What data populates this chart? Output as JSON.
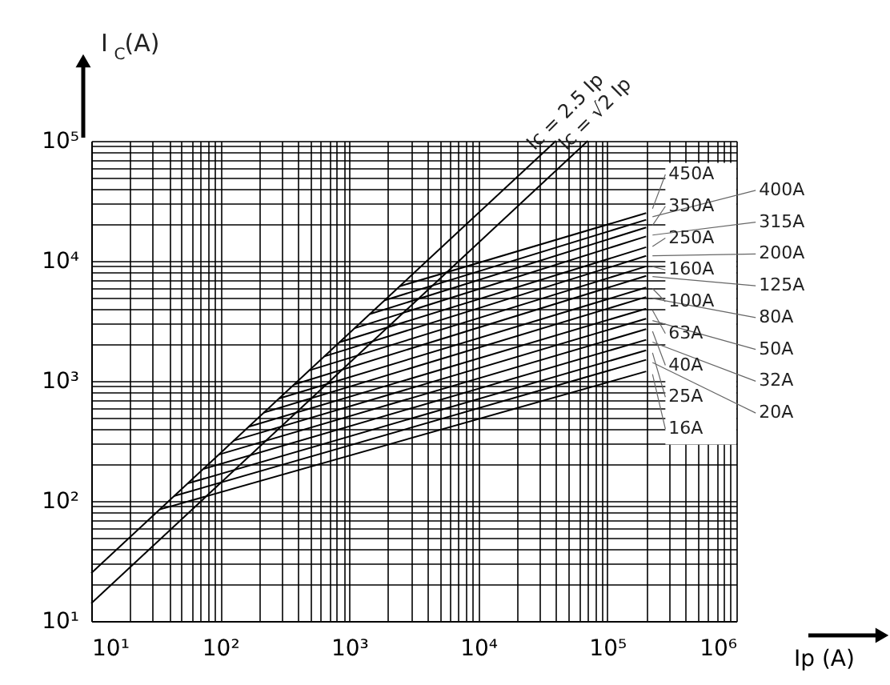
{
  "chart_data": {
    "type": "line",
    "xlabel": "Ip (A)",
    "ylabel": "I$_{C}$(A)",
    "log": "xy",
    "grid": true,
    "line_style": "solid",
    "marker": "none",
    "xlim": [
      10,
      1000000
    ],
    "ylim": [
      10,
      100000
    ],
    "xticks": [
      {
        "value": 10,
        "label": "10¹"
      },
      {
        "value": 100,
        "label": "10²"
      },
      {
        "value": 1000,
        "label": "10³"
      },
      {
        "value": 10000,
        "label": "10⁴"
      },
      {
        "value": 100000,
        "label": "10⁵"
      },
      {
        "value": 1000000,
        "label": "10⁶"
      }
    ],
    "yticks": [
      {
        "value": 10,
        "label": "10¹"
      },
      {
        "value": 100,
        "label": "10²"
      },
      {
        "value": 1000,
        "label": "10³"
      },
      {
        "value": 10000,
        "label": "10⁴"
      },
      {
        "value": 100000,
        "label": "10⁵"
      }
    ],
    "series": [
      {
        "name": "Ic = 2.5 Ip",
        "color": "#000000",
        "x": [
          10,
          40000
        ],
        "values": [
          25,
          100000
        ]
      },
      {
        "name": "Ic = √2 Ip",
        "color": "#000000",
        "x": [
          10,
          70700
        ],
        "values": [
          14,
          100000
        ]
      },
      {
        "name": "450A",
        "color": "#000000",
        "x": [
          2460,
          200000
        ],
        "values": [
          6150,
          25000
        ]
      },
      {
        "name": "400A",
        "color": "#000000",
        "x": [
          1880,
          200000
        ],
        "values": [
          4700,
          22000
        ]
      },
      {
        "name": "350A",
        "color": "#000000",
        "x": [
          1440,
          200000
        ],
        "values": [
          3600,
          19000
        ]
      },
      {
        "name": "315A",
        "color": "#000000",
        "x": [
          1100,
          200000
        ],
        "values": [
          2750,
          16000
        ]
      },
      {
        "name": "250A",
        "color": "#000000",
        "x": [
          838,
          200000
        ],
        "values": [
          2095,
          13000
        ]
      },
      {
        "name": "200A",
        "color": "#000000",
        "x": [
          640,
          200000
        ],
        "values": [
          1600,
          11000
        ]
      },
      {
        "name": "160A",
        "color": "#000000",
        "x": [
          489,
          200000
        ],
        "values": [
          1223,
          9000
        ]
      },
      {
        "name": "125A",
        "color": "#000000",
        "x": [
          373,
          200000
        ],
        "values": [
          933,
          7500
        ]
      },
      {
        "name": "100A",
        "color": "#000000",
        "x": [
          285,
          200000
        ],
        "values": [
          713,
          6000
        ]
      },
      {
        "name": "80A",
        "color": "#000000",
        "x": [
          218,
          200000
        ],
        "values": [
          545,
          5000
        ]
      },
      {
        "name": "63A",
        "color": "#000000",
        "x": [
          166,
          200000
        ],
        "values": [
          415,
          4000
        ]
      },
      {
        "name": "50A",
        "color": "#000000",
        "x": [
          127,
          200000
        ],
        "values": [
          318,
          3300
        ]
      },
      {
        "name": "40A",
        "color": "#000000",
        "x": [
          97,
          200000
        ],
        "values": [
          243,
          2700
        ]
      },
      {
        "name": "32A",
        "color": "#000000",
        "x": [
          74,
          200000
        ],
        "values": [
          185,
          2200
        ]
      },
      {
        "name": "25A",
        "color": "#000000",
        "x": [
          56,
          200000
        ],
        "values": [
          140,
          1800
        ]
      },
      {
        "name": "20A",
        "color": "#000000",
        "x": [
          44,
          200000
        ],
        "values": [
          110,
          1500
        ]
      },
      {
        "name": "16A",
        "color": "#000000",
        "x": [
          34,
          200000
        ],
        "values": [
          85,
          1200
        ]
      }
    ]
  }
}
